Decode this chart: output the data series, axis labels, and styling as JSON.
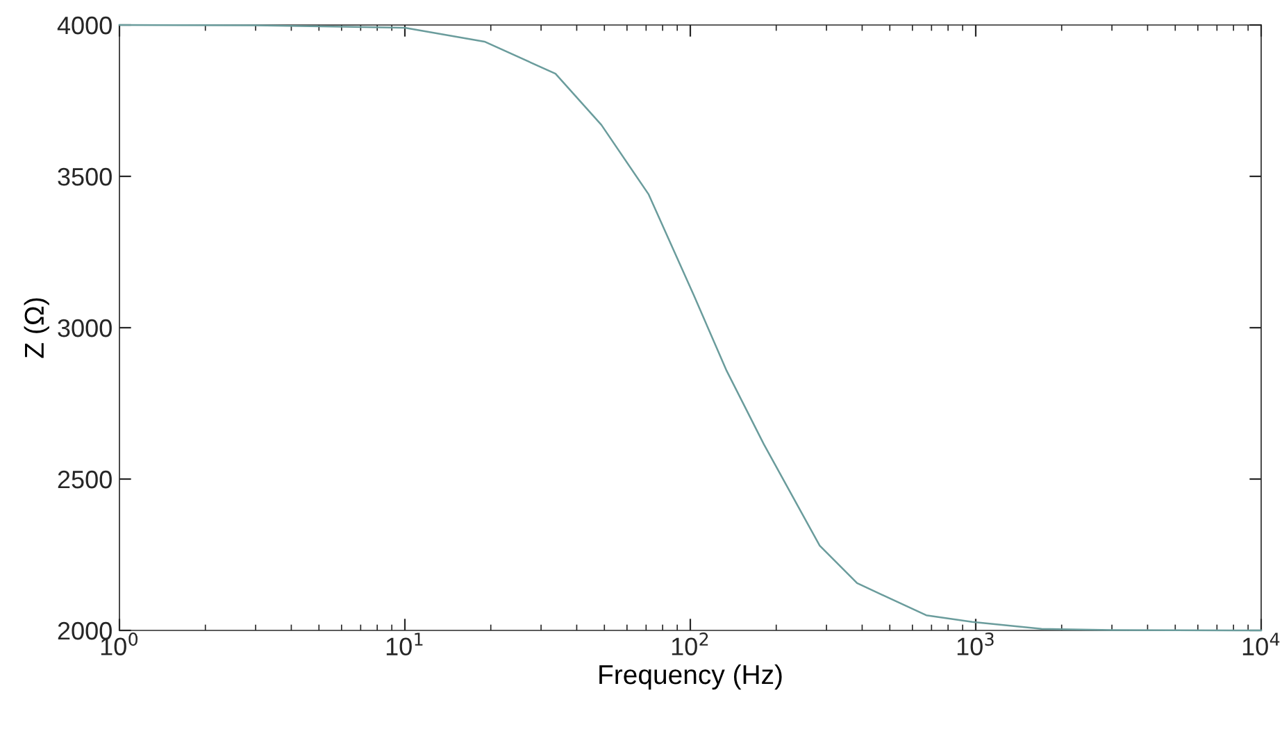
{
  "chart_data": {
    "type": "line",
    "xlabel": "Frequency (Hz)",
    "ylabel": "Z (Ω)",
    "log": "x",
    "x": [
      1,
      3,
      10,
      19,
      33.7,
      48.8,
      71.5,
      103,
      134,
      181,
      284,
      384,
      671,
      972,
      1700,
      3000,
      10000
    ],
    "series": [
      {
        "color": "#6a9c9c",
        "values": [
          4000,
          3999,
          3991,
          3945,
          3839,
          3670,
          3440,
          3106,
          2858,
          2615,
          2280,
          2156,
          2050,
          2028,
          2005,
          2001,
          2000
        ]
      }
    ],
    "xlim": [
      1,
      10000
    ],
    "ylim": [
      2000,
      4000
    ],
    "xticks": [
      {
        "value": 1,
        "label": "10$^{0}$"
      },
      {
        "value": 10,
        "label": "10$^{1}$"
      },
      {
        "value": 100,
        "label": "10$^{2}$"
      },
      {
        "value": 1000,
        "label": "10$^{3}$"
      },
      {
        "value": 10000,
        "label": "10$^{4}$"
      }
    ],
    "yticks": [
      2000,
      2500,
      3000,
      3500,
      4000
    ],
    "grid": false,
    "legend": false
  }
}
